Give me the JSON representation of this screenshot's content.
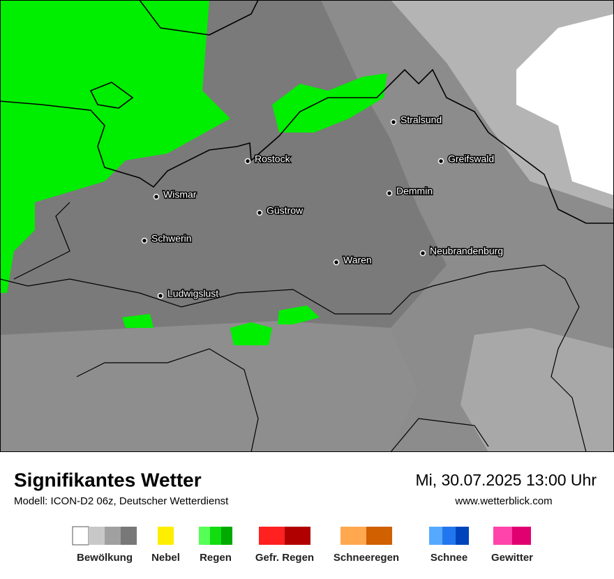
{
  "map": {
    "cities": [
      "Stralsund",
      "Rostock",
      "Greifswald",
      "Wismar",
      "Demmin",
      "Güstrow",
      "Schwerin",
      "Neubrandenburg",
      "Waren",
      "Ludwigslust"
    ]
  },
  "footer": {
    "title": "Signifikantes Wetter",
    "subtitle": "Modell: ICON-D2 06z, Deutscher Wetterdienst",
    "datetime": "Mi, 30.07.2025 13:00 Uhr",
    "website": "www.wetterblick.com"
  },
  "legend": [
    {
      "label": "Bewölkung",
      "colors": [
        "#ffffff",
        "#c8c8c8",
        "#a0a0a0",
        "#787878"
      ]
    },
    {
      "label": "Nebel",
      "colors": [
        "#ffee00"
      ]
    },
    {
      "label": "Regen",
      "colors": [
        "#55ff55",
        "#11dd11",
        "#00aa00"
      ]
    },
    {
      "label": "Gefr. Regen",
      "colors": [
        "#ff2020",
        "#b00000"
      ]
    },
    {
      "label": "Schneeregen",
      "colors": [
        "#ffa850",
        "#d06000"
      ]
    },
    {
      "label": "Schnee",
      "colors": [
        "#55aaff",
        "#2277ee",
        "#0044bb"
      ]
    },
    {
      "label": "Gewitter",
      "colors": [
        "#ff44aa",
        "#e00070"
      ]
    }
  ]
}
